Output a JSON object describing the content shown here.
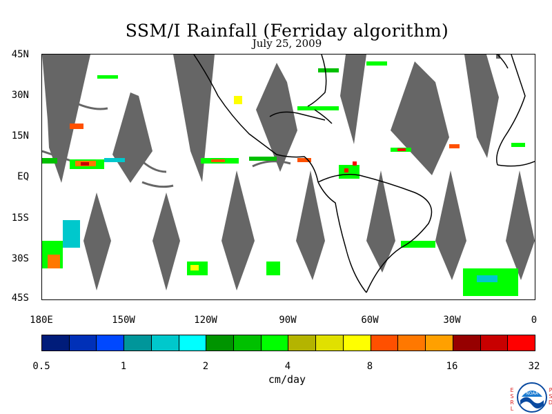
{
  "title": "SSM/I Rainfall (Ferriday algorithm)",
  "date": "July 25, 2009",
  "lat_labels": [
    "45N",
    "30N",
    "15N",
    "EQ",
    "15S",
    "30S",
    "45S"
  ],
  "lon_labels": [
    "180E",
    "150W",
    "120W",
    "90W",
    "60W",
    "30W",
    "0"
  ],
  "colorbar": {
    "colors": [
      "#001c7a",
      "#0030b8",
      "#0048ff",
      "#00969a",
      "#00c8cc",
      "#00ffff",
      "#009400",
      "#00c000",
      "#00ff00",
      "#b4b400",
      "#e0e000",
      "#ffff00",
      "#ff5000",
      "#ff7800",
      "#ffa000",
      "#960000",
      "#c80000",
      "#ff0000"
    ],
    "tick_labels": [
      "0.5",
      "1",
      "2",
      "4",
      "8",
      "16",
      "32"
    ],
    "units": "cm/day"
  },
  "logo": {
    "left_letters": "ESRL",
    "right_letters": "PSD",
    "emblem_text": "NOAA"
  },
  "colors": {
    "no_data_swath": "#666666",
    "coastline": "#000000",
    "background": "#ffffff"
  }
}
